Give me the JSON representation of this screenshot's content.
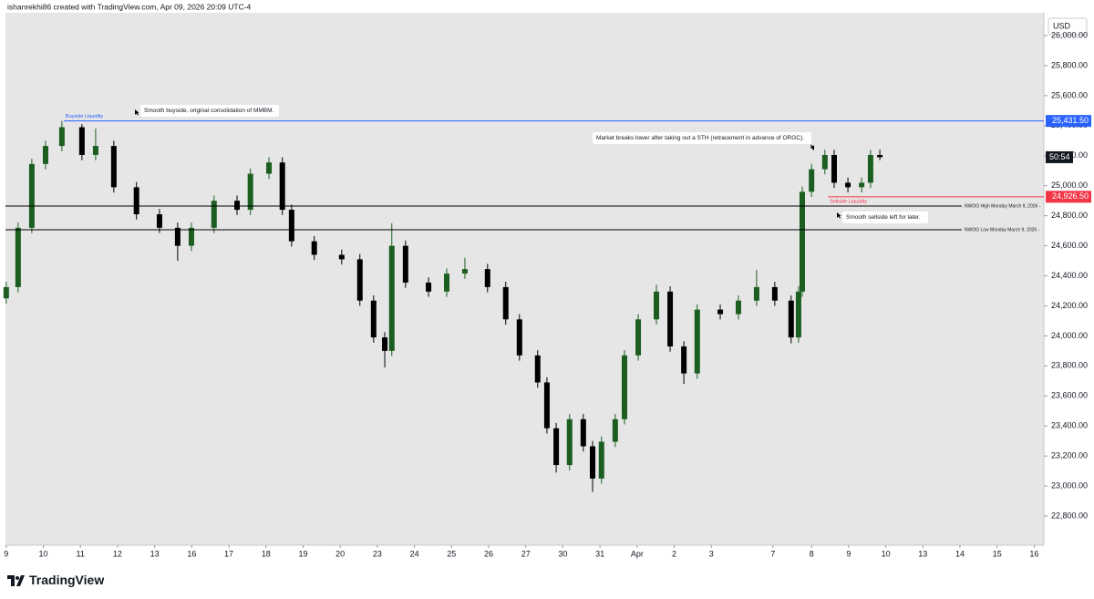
{
  "header": "ishanrekhi86 created with TradingView.com, Apr 09, 2026 20:09 UTC-4",
  "chart_data": {
    "type": "candlestick",
    "currency": "USD",
    "up_color": "#1b5e20",
    "down_color": "#000000",
    "grid": false,
    "x": [
      0,
      0.32,
      0.69,
      1.06,
      1.5,
      2.04,
      2.41,
      2.9,
      3.51,
      4.13,
      4.62,
      4.99,
      5.6,
      6.22,
      6.58,
      7.08,
      7.44,
      7.69,
      8.3,
      9.04,
      9.53,
      9.9,
      10.2,
      10.39,
      10.76,
      11.38,
      11.87,
      12.36,
      12.97,
      13.46,
      13.83,
      14.32,
      14.57,
      14.82,
      15.18,
      15.55,
      15.8,
      16.04,
      16.41,
      16.66,
      17.03,
      17.52,
      17.89,
      18.26,
      18.62,
      19.24,
      19.73,
      20.22,
      20.71,
      21.15,
      21.35,
      21.45,
      21.7,
      22.06,
      22.31,
      22.68,
      23.05,
      23.29,
      23.54
    ],
    "open": [
      24250,
      24325,
      24720,
      25145,
      25265,
      25390,
      25205,
      25265,
      24990,
      24810,
      24720,
      24600,
      24720,
      24900,
      24840,
      25080,
      25155,
      24840,
      24630,
      24540,
      24510,
      24235,
      23990,
      23900,
      24600,
      24355,
      24295,
      24415,
      24445,
      24325,
      24110,
      23870,
      23690,
      23385,
      23140,
      23445,
      23265,
      23050,
      23295,
      23445,
      23870,
      24110,
      24295,
      23930,
      23750,
      24175,
      24145,
      24235,
      24325,
      24235,
      23990,
      24295,
      24960,
      25110,
      25205,
      25020,
      24990,
      25020,
      25205
    ],
    "high": [
      24360,
      24755,
      25180,
      25300,
      25431.5,
      25410,
      25380,
      25300,
      25025,
      24845,
      24755,
      24755,
      24935,
      24935,
      25115,
      25190,
      25190,
      24875,
      24665,
      24575,
      24545,
      24270,
      24025,
      24750,
      24635,
      24390,
      24450,
      24520,
      24480,
      24360,
      24145,
      23905,
      23725,
      23420,
      23480,
      23480,
      23300,
      23330,
      23480,
      23905,
      24145,
      24340,
      24330,
      23965,
      24210,
      24210,
      24270,
      24440,
      24360,
      24270,
      24330,
      24995,
      25145,
      25240,
      25240,
      25055,
      25055,
      25240,
      25240
    ],
    "low": [
      24215,
      24290,
      24685,
      25110,
      25230,
      25170,
      25170,
      24955,
      24775,
      24685,
      24500,
      24565,
      24685,
      24805,
      24805,
      25045,
      24805,
      24595,
      24505,
      24475,
      24200,
      23955,
      23790,
      23865,
      24320,
      24260,
      24260,
      24380,
      24290,
      24075,
      23835,
      23655,
      23350,
      23090,
      23105,
      23230,
      22960,
      23015,
      23260,
      23410,
      23835,
      24075,
      23895,
      23680,
      23715,
      24110,
      24110,
      24200,
      24200,
      23950,
      23955,
      24260,
      24925,
      25075,
      24985,
      24955,
      24955,
      24985,
      25170
    ],
    "close": [
      24325,
      24720,
      25145,
      25265,
      25390,
      25205,
      25265,
      24990,
      24810,
      24720,
      24600,
      24720,
      24900,
      24840,
      25080,
      25155,
      24840,
      24630,
      24540,
      24510,
      24235,
      23990,
      23900,
      24600,
      24355,
      24295,
      24415,
      24445,
      24325,
      24110,
      23870,
      23690,
      23385,
      23140,
      23445,
      23265,
      23050,
      23295,
      23445,
      23870,
      24110,
      24295,
      23930,
      23750,
      24175,
      24145,
      24235,
      24325,
      24235,
      23990,
      24295,
      24960,
      25110,
      25205,
      25020,
      24990,
      25020,
      25205,
      25190
    ],
    "xlim": [
      -0.02,
      27.96
    ],
    "xticks": [
      {
        "value": 0,
        "label": "9"
      },
      {
        "value": 1,
        "label": "10"
      },
      {
        "value": 2,
        "label": "11"
      },
      {
        "value": 3,
        "label": "12"
      },
      {
        "value": 4,
        "label": "13"
      },
      {
        "value": 5,
        "label": "16"
      },
      {
        "value": 6,
        "label": "17"
      },
      {
        "value": 7,
        "label": "18"
      },
      {
        "value": 8,
        "label": "19"
      },
      {
        "value": 9,
        "label": "20"
      },
      {
        "value": 10,
        "label": "23"
      },
      {
        "value": 11,
        "label": "24"
      },
      {
        "value": 12,
        "label": "25"
      },
      {
        "value": 13,
        "label": "26"
      },
      {
        "value": 14,
        "label": "27"
      },
      {
        "value": 15,
        "label": "30"
      },
      {
        "value": 16,
        "label": "31"
      },
      {
        "value": 17,
        "label": "Apr"
      },
      {
        "value": 18,
        "label": "2"
      },
      {
        "value": 19,
        "label": "3"
      },
      {
        "value": 20.66,
        "label": "7"
      },
      {
        "value": 21.7,
        "label": "8"
      },
      {
        "value": 22.7,
        "label": "9"
      },
      {
        "value": 23.7,
        "label": "10"
      },
      {
        "value": 24.7,
        "label": "13"
      },
      {
        "value": 25.7,
        "label": "14"
      },
      {
        "value": 26.7,
        "label": "15"
      },
      {
        "value": 27.7,
        "label": "16"
      }
    ],
    "ylim": [
      22606,
      26152
    ],
    "yticks": [
      {
        "value": 22800,
        "label": "22,800.00"
      },
      {
        "value": 23000,
        "label": "23,000.00"
      },
      {
        "value": 23200,
        "label": "23,200.00"
      },
      {
        "value": 23400,
        "label": "23,400.00"
      },
      {
        "value": 23600,
        "label": "23,600.00"
      },
      {
        "value": 23800,
        "label": "23,800.00"
      },
      {
        "value": 24000,
        "label": "24,000.00"
      },
      {
        "value": 24200,
        "label": "24,200.00"
      },
      {
        "value": 24400,
        "label": "24,400.00"
      },
      {
        "value": 24600,
        "label": "24,600.00"
      },
      {
        "value": 24800,
        "label": "24,800.00"
      },
      {
        "value": 25000,
        "label": "25,000.00"
      },
      {
        "value": 25200,
        "label": "25,200.00"
      },
      {
        "value": 25400,
        "label": "25,400.00"
      },
      {
        "value": 25600,
        "label": "25,600.00"
      },
      {
        "value": 25800,
        "label": "25,800.00"
      },
      {
        "value": 26000,
        "label": "26,000.00"
      }
    ],
    "levels": [
      {
        "name": "Buyside Liquidity",
        "value": 25431.5,
        "axis_label": "25,431.50",
        "color": "#2962ff",
        "x_start": 1.55,
        "label_position": "above"
      },
      {
        "name": "Sellside Liquidity",
        "value": 24926.5,
        "axis_label": "24,926.50",
        "color": "#f23645",
        "x_start": 22.14,
        "label_position": "below"
      },
      {
        "name": "NWOG High Monday March 9, 2026 -",
        "value": 24865,
        "color": "#000000",
        "label_position": "end"
      },
      {
        "name": "NWOG Low Monday March 9, 2026 -",
        "value": 24707,
        "color": "#000000",
        "label_position": "end"
      }
    ],
    "annotations": [
      "Smooth buyside, original consolidation of MMBM.",
      "Market breaks lower after taking out a STH (retracement in advance of ORGC).",
      "Smooth sellside left for later."
    ],
    "countdown": "50:54"
  },
  "footer": {
    "brand": "TradingView"
  }
}
